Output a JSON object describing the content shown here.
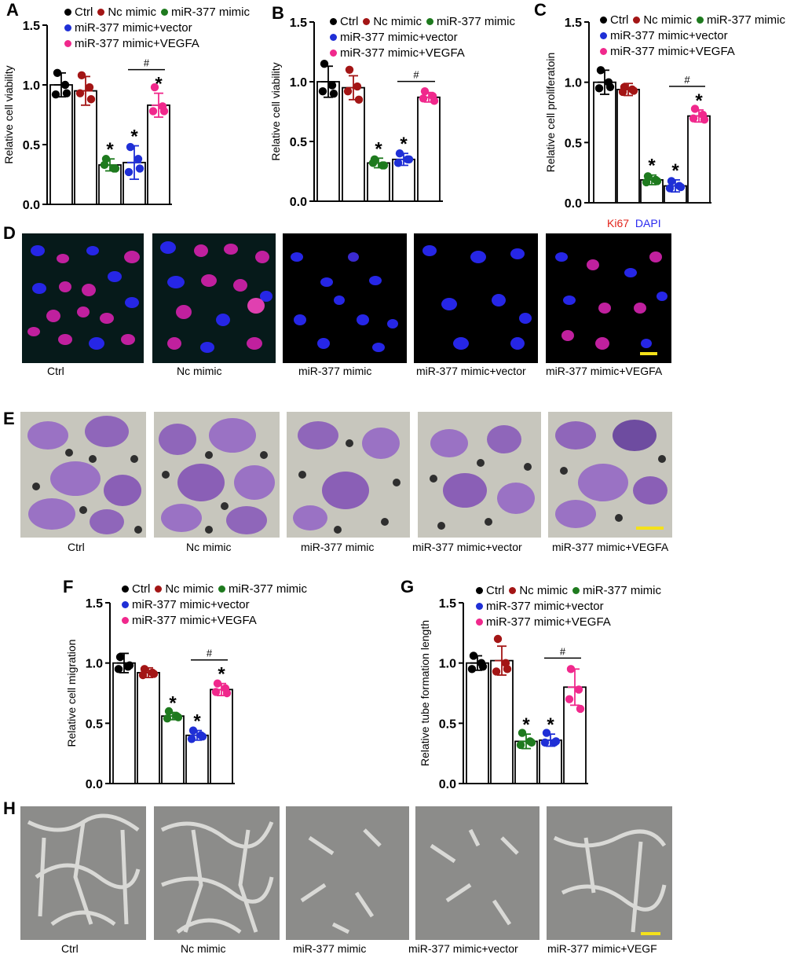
{
  "series_colors": [
    "#000000",
    "#a31515",
    "#1e7a1e",
    "#1f2fd6",
    "#f0288c"
  ],
  "panels": {
    "A": "A",
    "B": "B",
    "C": "C",
    "D": "D",
    "E": "E",
    "F": "F",
    "G": "G",
    "H": "H"
  },
  "legend": {
    "ctrl": "Ctrl",
    "nc": "Nc mimic",
    "mimic": "miR-377 mimic",
    "vector": "miR-377 mimic+vector",
    "vegfa": "miR-377 mimic+VEGFA"
  },
  "stain_labels": {
    "ki67": "Ki67",
    "dapi": "DAPI"
  },
  "image_captions": {
    "D": [
      "Ctrl",
      "Nc mimic",
      "miR-377 mimic",
      "miR-377 mimic+vector",
      "miR-377 mimic+VEGFA"
    ],
    "E": [
      "Ctrl",
      "Nc mimic",
      "miR-377 mimic",
      "miR-377 mimic+vector",
      "miR-377 mimic+VEGFA"
    ],
    "H": [
      "Ctrl",
      "Nc mimic",
      "miR-377 mimic",
      "miR-377 mimic+vector",
      "miR-377 mimic+VEGF"
    ]
  },
  "chart_data": [
    {
      "id": "A",
      "type": "bar",
      "ylabel": "Relative cell viability",
      "ylim": [
        0,
        1.5
      ],
      "yticks": [
        "0.0",
        "0.5",
        "1.0",
        "1.5"
      ],
      "ytick_values": [
        0,
        0.5,
        1.0,
        1.5
      ],
      "categories": [
        "Ctrl",
        "Nc mimic",
        "miR-377 mimic",
        "miR-377 mimic+vector",
        "miR-377 mimic+VEGFA"
      ],
      "values": [
        1.0,
        0.95,
        0.33,
        0.35,
        0.83
      ],
      "errors": [
        0.1,
        0.12,
        0.05,
        0.14,
        0.1
      ],
      "points": [
        [
          1.1,
          1.0,
          0.92,
          0.93
        ],
        [
          1.08,
          0.98,
          0.93,
          0.88
        ],
        [
          0.38,
          0.3,
          0.33,
          0.3
        ],
        [
          0.48,
          0.38,
          0.27,
          0.3
        ],
        [
          0.98,
          0.82,
          0.78,
          0.78
        ]
      ],
      "stars": [
        false,
        false,
        true,
        true,
        true
      ],
      "hash": "#",
      "hash_between": [
        3,
        4
      ],
      "star": "*"
    },
    {
      "id": "B",
      "type": "bar",
      "ylabel": "Relative cell viability",
      "ylim": [
        0,
        1.5
      ],
      "yticks": [
        "0.0",
        "0.5",
        "1.0",
        "1.5"
      ],
      "ytick_values": [
        0,
        0.5,
        1.0,
        1.5
      ],
      "categories": [
        "Ctrl",
        "Nc mimic",
        "miR-377 mimic",
        "miR-377 mimic+vector",
        "miR-377 mimic+VEGFA"
      ],
      "values": [
        1.0,
        0.95,
        0.32,
        0.35,
        0.87
      ],
      "errors": [
        0.13,
        0.1,
        0.04,
        0.05,
        0.04
      ],
      "points": [
        [
          1.15,
          0.97,
          0.92,
          0.9
        ],
        [
          1.1,
          0.96,
          0.92,
          0.85
        ],
        [
          0.35,
          0.3,
          0.32,
          0.3
        ],
        [
          0.4,
          0.35,
          0.32,
          0.35
        ],
        [
          0.92,
          0.88,
          0.86,
          0.84
        ]
      ],
      "stars": [
        false,
        false,
        true,
        true,
        false
      ],
      "hash": "#",
      "hash_between": [
        3,
        4
      ],
      "star": "*"
    },
    {
      "id": "C",
      "type": "bar",
      "ylabel": "Relative cell proliferatoin",
      "ylim": [
        0,
        1.5
      ],
      "yticks": [
        "0.0",
        "0.5",
        "1.0",
        "1.5"
      ],
      "ytick_values": [
        0,
        0.5,
        1.0,
        1.5
      ],
      "categories": [
        "Ctrl",
        "Nc mimic",
        "miR-377 mimic",
        "miR-377 mimic+vector",
        "miR-377 mimic+VEGFA"
      ],
      "values": [
        1.0,
        0.94,
        0.19,
        0.14,
        0.72
      ],
      "errors": [
        0.1,
        0.05,
        0.04,
        0.05,
        0.05
      ],
      "points": [
        [
          1.1,
          1.0,
          0.95,
          0.96
        ],
        [
          0.96,
          0.94,
          0.92,
          0.93
        ],
        [
          0.22,
          0.19,
          0.17,
          0.18
        ],
        [
          0.18,
          0.14,
          0.12,
          0.13
        ],
        [
          0.78,
          0.73,
          0.7,
          0.69
        ]
      ],
      "stars": [
        false,
        false,
        true,
        true,
        true
      ],
      "hash": "#",
      "hash_between": [
        3,
        4
      ],
      "star": "*"
    },
    {
      "id": "F",
      "type": "bar",
      "ylabel": "Relative cell migration",
      "ylim": [
        0,
        1.5
      ],
      "yticks": [
        "0.0",
        "0.5",
        "1.0",
        "1.5"
      ],
      "ytick_values": [
        0,
        0.5,
        1.0,
        1.5
      ],
      "categories": [
        "Ctrl",
        "Nc mimic",
        "miR-377 mimic",
        "miR-377 mimic+vector",
        "miR-377 mimic+VEGFA"
      ],
      "values": [
        1.0,
        0.92,
        0.56,
        0.4,
        0.78
      ],
      "errors": [
        0.08,
        0.04,
        0.03,
        0.04,
        0.05
      ],
      "points": [
        [
          1.05,
          0.97,
          0.95,
          0.98
        ],
        [
          0.95,
          0.92,
          0.9,
          0.91
        ],
        [
          0.6,
          0.56,
          0.54,
          0.55
        ],
        [
          0.44,
          0.4,
          0.37,
          0.39
        ],
        [
          0.83,
          0.79,
          0.76,
          0.75
        ]
      ],
      "stars": [
        false,
        false,
        true,
        true,
        true
      ],
      "hash": "#",
      "hash_between": [
        3,
        4
      ],
      "star": "*"
    },
    {
      "id": "G",
      "type": "bar",
      "ylabel": "Relative tube formation length",
      "ylim": [
        0,
        1.5
      ],
      "yticks": [
        "0.0",
        "0.5",
        "1.0",
        "1.5"
      ],
      "ytick_values": [
        0,
        0.5,
        1.0,
        1.5
      ],
      "categories": [
        "Ctrl",
        "Nc mimic",
        "miR-377 mimic",
        "miR-377 mimic+vector",
        "miR-377 mimic+VEGFA"
      ],
      "values": [
        1.0,
        1.02,
        0.35,
        0.36,
        0.8
      ],
      "errors": [
        0.06,
        0.12,
        0.06,
        0.05,
        0.15
      ],
      "points": [
        [
          1.06,
          1.0,
          0.95,
          0.97
        ],
        [
          1.2,
          1.0,
          0.93,
          0.95
        ],
        [
          0.42,
          0.35,
          0.32,
          0.34
        ],
        [
          0.42,
          0.34,
          0.34,
          0.35
        ],
        [
          0.95,
          0.78,
          0.7,
          0.62
        ]
      ],
      "stars": [
        false,
        false,
        true,
        true,
        false
      ],
      "hash": "#",
      "hash_between": [
        3,
        4
      ],
      "star": "*"
    }
  ]
}
